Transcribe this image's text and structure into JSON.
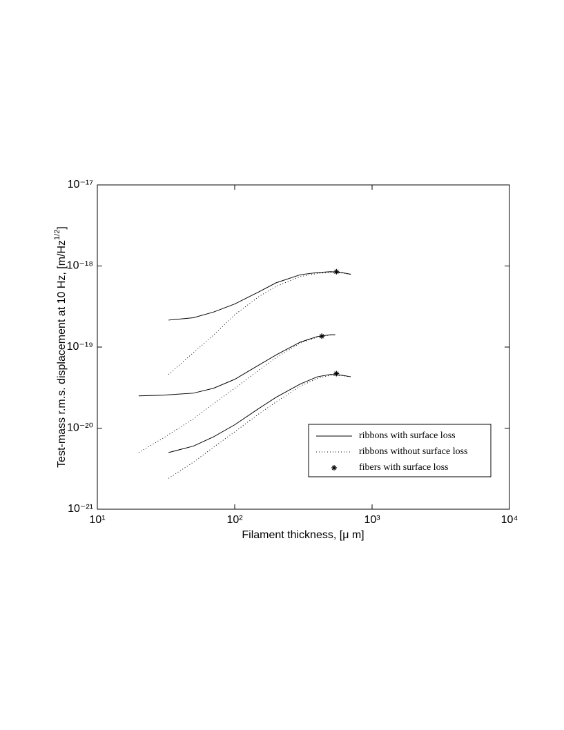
{
  "chart_data": {
    "type": "line",
    "xlabel": "Filament thickness,  [μ m]",
    "ylabel": {
      "text": "Test-mass r.m.s. displacement at 10 Hz,  [m/Hz",
      "sup": "1/2",
      "tail": "]"
    },
    "xscale": "log",
    "yscale": "log",
    "xlim": [
      10,
      10000
    ],
    "ylim": [
      1e-21,
      1e-17
    ],
    "xticks": [
      {
        "value": 10,
        "label": "10¹"
      },
      {
        "value": 100,
        "label": "10²"
      },
      {
        "value": 1000,
        "label": "10³"
      },
      {
        "value": 10000,
        "label": "10⁴"
      }
    ],
    "yticks": [
      {
        "value": 1e-21,
        "label": "10⁻²¹"
      },
      {
        "value": 1e-20,
        "label": "10⁻²⁰"
      },
      {
        "value": 1e-19,
        "label": "10⁻¹⁹"
      },
      {
        "value": 1e-18,
        "label": "10⁻¹⁸"
      },
      {
        "value": 1e-17,
        "label": "10⁻¹⁷"
      }
    ],
    "legend": "lower right",
    "series": [
      {
        "name": "ribbons with surface loss",
        "color": "#000000",
        "style": "solid",
        "curves": [
          {
            "x": [
              33,
              50,
              70,
              100,
              150,
              200,
              300,
              400,
              500,
              600,
              700
            ],
            "values": [
              2.15e-19,
              2.3e-19,
              2.7e-19,
              3.4e-19,
              4.8e-19,
              6.2e-19,
              7.8e-19,
              8.3e-19,
              8.5e-19,
              8.3e-19,
              7.9e-19
            ]
          },
          {
            "x": [
              20,
              30,
              50,
              70,
              100,
              150,
              200,
              300,
              400,
              500,
              540
            ],
            "values": [
              2.5e-20,
              2.55e-20,
              2.7e-20,
              3.1e-20,
              4e-20,
              6e-20,
              8e-20,
              1.15e-19,
              1.35e-19,
              1.42e-19,
              1.42e-19
            ]
          },
          {
            "x": [
              33,
              50,
              70,
              100,
              150,
              200,
              300,
              400,
              500,
              600,
              700
            ],
            "values": [
              5e-21,
              6e-21,
              7.8e-21,
              1.1e-20,
              1.75e-20,
              2.4e-20,
              3.5e-20,
              4.3e-20,
              4.6e-20,
              4.5e-20,
              4.3e-20
            ]
          }
        ]
      },
      {
        "name": "ribbons without surface loss",
        "color": "#000000",
        "style": "dotted",
        "curves": [
          {
            "x": [
              33,
              50,
              70,
              100,
              150,
              200,
              300,
              400,
              500,
              600,
              700
            ],
            "values": [
              4.6e-20,
              8.5e-20,
              1.4e-19,
              2.5e-19,
              4.2e-19,
              5.6e-19,
              7.4e-19,
              8.1e-19,
              8.3e-19,
              8.2e-19,
              7.9e-19
            ]
          },
          {
            "x": [
              20,
              30,
              50,
              70,
              100,
              150,
              200,
              300,
              400,
              500,
              540
            ],
            "values": [
              5e-21,
              7.5e-21,
              1.3e-20,
              2e-20,
              3.1e-20,
              5.2e-20,
              7.4e-20,
              1.12e-19,
              1.33e-19,
              1.41e-19,
              1.41e-19
            ]
          },
          {
            "x": [
              33,
              50,
              70,
              100,
              150,
              200,
              300,
              400,
              500,
              600,
              700
            ],
            "values": [
              2.4e-21,
              3.8e-21,
              5.8e-21,
              9e-21,
              1.5e-20,
              2.1e-20,
              3.3e-20,
              4.1e-20,
              4.5e-20,
              4.45e-20,
              4.3e-20
            ]
          }
        ]
      },
      {
        "name": "fibers with surface loss",
        "color": "#000000",
        "style": "star",
        "x": [
          550,
          430,
          550
        ],
        "values": [
          8.5e-19,
          1.36e-19,
          4.7e-20
        ]
      }
    ]
  }
}
